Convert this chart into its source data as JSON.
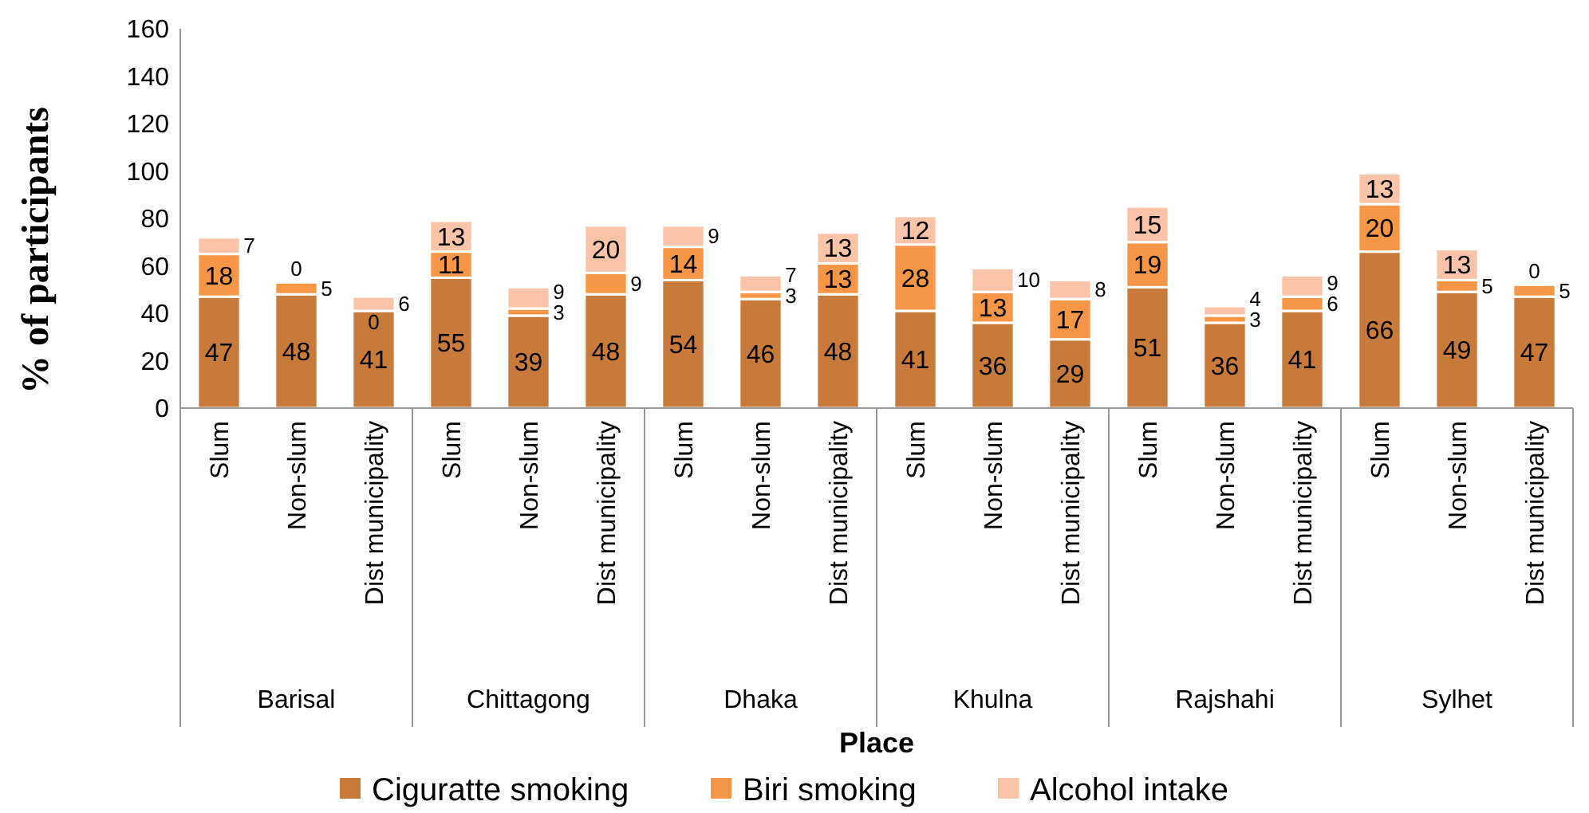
{
  "chart_data": {
    "type": "bar",
    "stacked": true,
    "ylabel": "% of participants",
    "xlabel": "Place",
    "categories": [
      "Slum",
      "Non-slum",
      "Dist municipality",
      "Slum",
      "Non-slum",
      "Dist municipality",
      "Slum",
      "Non-slum",
      "Dist municipality",
      "Slum",
      "Non-slum",
      "Dist municipality",
      "Slum",
      "Non-slum",
      "Dist municipality",
      "Slum",
      "Non-slum",
      "Dist municipality"
    ],
    "annotations": [
      "Barisal",
      "Chittagong",
      "Dhaka",
      "Khulna",
      "Rajshahi",
      "Sylhet"
    ],
    "series": [
      {
        "name": "Ciguratte smoking",
        "color": "#c87a3b",
        "values": [
          47,
          48,
          41,
          55,
          39,
          48,
          54,
          46,
          48,
          41,
          36,
          29,
          51,
          36,
          41,
          66,
          49,
          47
        ]
      },
      {
        "name": "Biri smoking",
        "color": "#f79646",
        "values": [
          18,
          5,
          0,
          11,
          3,
          9,
          14,
          3,
          13,
          28,
          13,
          17,
          19,
          3,
          6,
          20,
          5,
          5
        ]
      },
      {
        "name": "Alcohol intake",
        "color": "#fbc4a8",
        "values": [
          7,
          0,
          6,
          13,
          9,
          20,
          9,
          7,
          13,
          12,
          10,
          8,
          15,
          4,
          9,
          13,
          13,
          0
        ]
      }
    ],
    "ylim": [
      0,
      160
    ],
    "yticks": [
      0,
      20,
      40,
      60,
      80,
      100,
      120,
      140,
      160
    ],
    "data_labels": true,
    "legend": "bottom",
    "grid": false
  }
}
